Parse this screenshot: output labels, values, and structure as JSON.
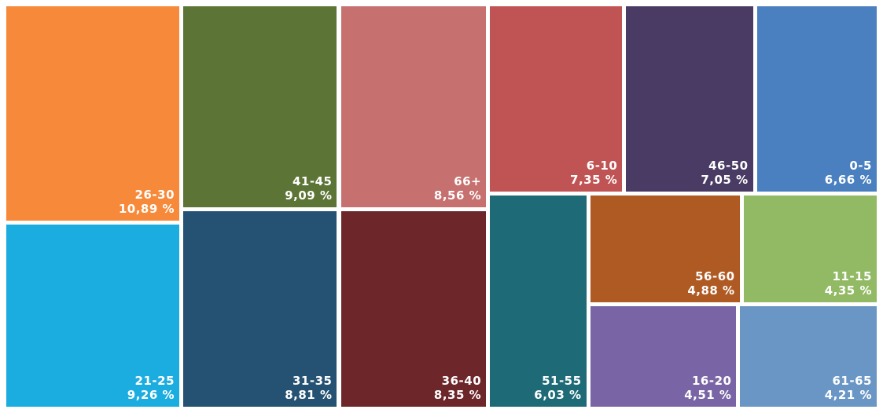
{
  "chart_data": {
    "type": "treemap",
    "unit": "%",
    "items": [
      {
        "label": "26-30",
        "value": 10.89,
        "value_text": "10,89 %",
        "color": "#F68A3A"
      },
      {
        "label": "21-25",
        "value": 9.26,
        "value_text": "9,26 %",
        "color": "#1CADE0"
      },
      {
        "label": "41-45",
        "value": 9.09,
        "value_text": "9,09 %",
        "color": "#5C7436"
      },
      {
        "label": "31-35",
        "value": 8.81,
        "value_text": "8,81 %",
        "color": "#255173"
      },
      {
        "label": "66+",
        "value": 8.56,
        "value_text": "8,56 %",
        "color": "#C6716F"
      },
      {
        "label": "36-40",
        "value": 8.35,
        "value_text": "8,35 %",
        "color": "#6D262A"
      },
      {
        "label": "6-10",
        "value": 7.35,
        "value_text": "7,35 %",
        "color": "#C05454"
      },
      {
        "label": "46-50",
        "value": 7.05,
        "value_text": "7,05 %",
        "color": "#493B63"
      },
      {
        "label": "0-5",
        "value": 6.66,
        "value_text": "6,66 %",
        "color": "#4A80BF"
      },
      {
        "label": "51-55",
        "value": 6.03,
        "value_text": "6,03 %",
        "color": "#1E6B77"
      },
      {
        "label": "56-60",
        "value": 4.88,
        "value_text": "4,88 %",
        "color": "#B05A23"
      },
      {
        "label": "11-15",
        "value": 4.35,
        "value_text": "4,35 %",
        "color": "#92BA64"
      },
      {
        "label": "16-20",
        "value": 4.51,
        "value_text": "4,51 %",
        "color": "#7965A5"
      },
      {
        "label": "61-65",
        "value": 4.21,
        "value_text": "4,21 %",
        "color": "#6A96C5"
      }
    ]
  }
}
